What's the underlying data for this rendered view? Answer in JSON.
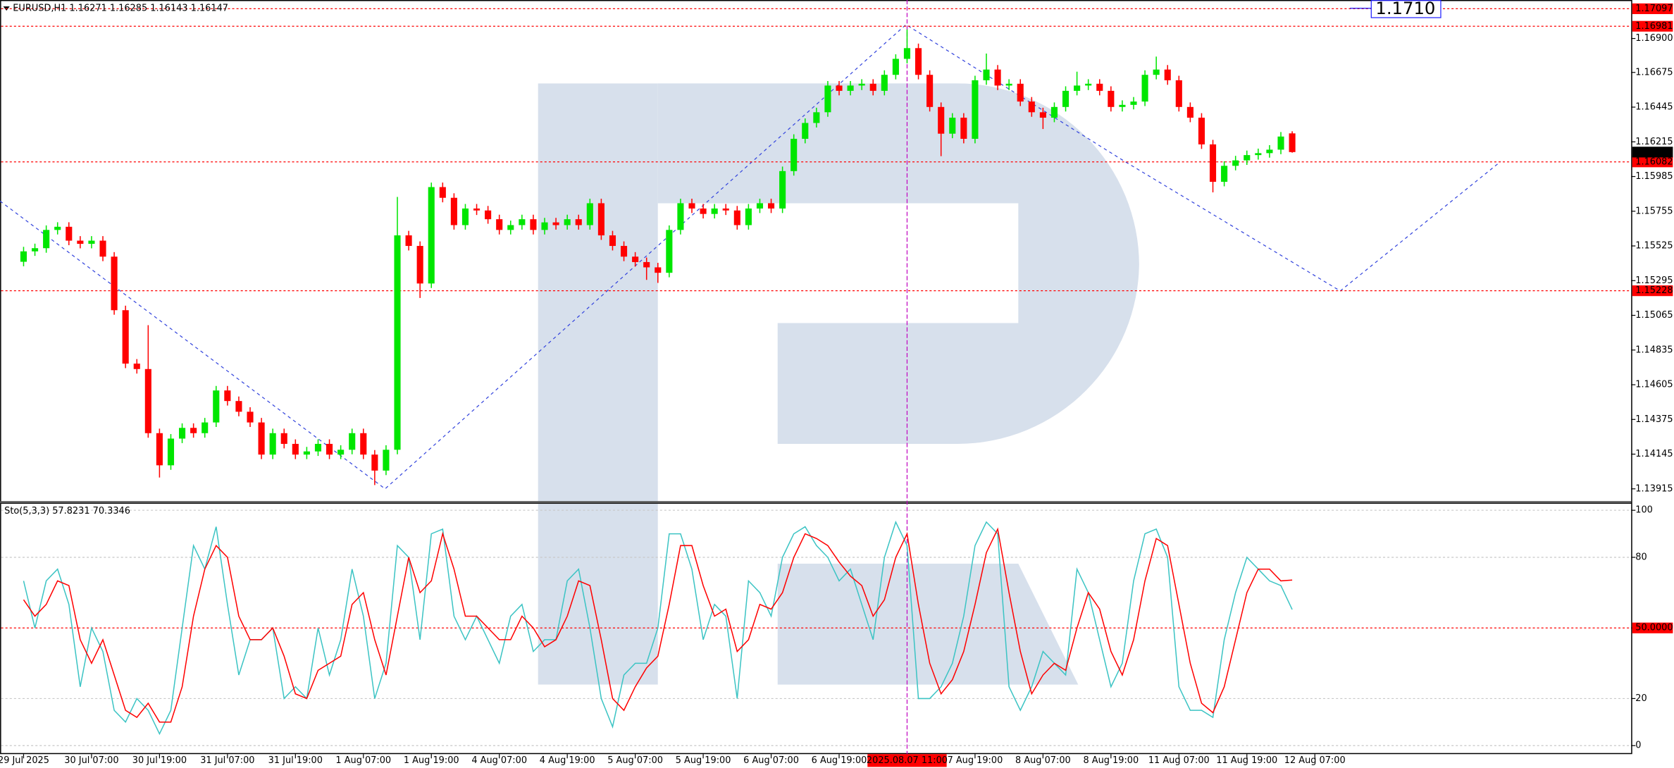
{
  "chart_data": [
    {
      "type": "candlestick",
      "title": "EURUSD,H1 1.16271 1.16285 1.16143 1.16147",
      "up_color": "#00e600",
      "down_color": "#ff0000",
      "ylim": [
        1.1383,
        1.17155
      ],
      "yticks": [
        {
          "value": 1.169,
          "label": "1.16900"
        },
        1.16675,
        1.16445,
        1.16215,
        1.15985,
        1.15755,
        1.15525,
        1.15295,
        1.15065,
        1.14835,
        1.14605,
        1.14375,
        1.14145,
        1.13915
      ],
      "grid": false,
      "levels": [
        1.17097,
        1.16981,
        1.16082,
        1.15228
      ],
      "level_color": "#ff0000",
      "last_price": 1.16147,
      "last_price_color": "#000000",
      "annotations": [
        {
          "value": 1.171,
          "label": "1.1710",
          "color": "#1a1aff"
        }
      ],
      "crosshair_index": 78,
      "crosshair_color": "#c000c0",
      "categories": [
        "29 Jul 2025",
        null,
        null,
        null,
        null,
        null,
        "30 Jul 07:00",
        null,
        null,
        null,
        null,
        null,
        "30 Jul 19:00",
        null,
        null,
        null,
        null,
        null,
        "31 Jul 07:00",
        null,
        null,
        null,
        null,
        null,
        "31 Jul 19:00",
        null,
        null,
        null,
        null,
        null,
        "1 Aug 07:00",
        null,
        null,
        null,
        null,
        null,
        "1 Aug 19:00",
        null,
        null,
        null,
        null,
        null,
        "4 Aug 07:00",
        null,
        null,
        null,
        null,
        null,
        "4 Aug 19:00",
        null,
        null,
        null,
        null,
        null,
        "5 Aug 07:00",
        null,
        null,
        null,
        null,
        null,
        "5 Aug 19:00",
        null,
        null,
        null,
        null,
        null,
        "6 Aug 07:00",
        null,
        null,
        null,
        null,
        null,
        "6 Aug 19:00",
        null,
        null,
        null,
        null,
        null,
        "2025.08.07 11:00",
        null,
        null,
        null,
        null,
        null,
        "7 Aug 19:00",
        null,
        null,
        null,
        null,
        null,
        "8 Aug 07:00",
        null,
        null,
        null,
        null,
        null,
        "8 Aug 19:00",
        null,
        null,
        null,
        null,
        null,
        "11 Aug 07:00",
        null,
        null,
        null,
        null,
        null,
        "11 Aug 19:00",
        null,
        null,
        null,
        null,
        null,
        "12 Aug 07:00"
      ],
      "open": [
        1.1542,
        1.15489,
        1.1551,
        1.15631,
        1.15652,
        1.1556,
        1.15539,
        1.1556,
        1.15454,
        1.15099,
        1.14745,
        1.14709,
        1.14284,
        1.14071,
        1.14248,
        1.14319,
        1.14284,
        1.14355,
        1.14567,
        1.14497,
        1.14426,
        1.14355,
        1.14142,
        1.14284,
        1.14213,
        1.14142,
        1.14163,
        1.14213,
        1.14142,
        1.14174,
        1.14284,
        1.14142,
        1.14036,
        1.14174,
        1.15595,
        1.15525,
        1.15276,
        1.15915,
        1.15844,
        1.15663,
        1.15773,
        1.1576,
        1.15702,
        1.15631,
        1.15663,
        1.15702,
        1.15631,
        1.15681,
        1.15663,
        1.15702,
        1.15663,
        1.15808,
        1.15595,
        1.15525,
        1.15454,
        1.15418,
        1.15383,
        1.15347,
        1.15631,
        1.15808,
        1.15773,
        1.15737,
        1.15773,
        1.1576,
        1.15663,
        1.15773,
        1.15808,
        1.15773,
        1.16021,
        1.16235,
        1.1634,
        1.16411,
        1.16588,
        1.16553,
        1.16588,
        1.166,
        1.16553,
        1.16659,
        1.16765,
        1.16836,
        1.16659,
        1.16446,
        1.16269,
        1.16375,
        1.16235,
        1.16623,
        1.16694,
        1.16588,
        1.166,
        1.16482,
        1.16411,
        1.16375,
        1.16446,
        1.16553,
        1.16588,
        1.166,
        1.16553,
        1.16446,
        1.1646,
        1.16482,
        1.16659,
        1.16694,
        1.16623,
        1.16446,
        1.16375,
        1.16198,
        1.1595,
        1.16056,
        1.16092,
        1.16127,
        1.1614,
        1.16163,
        1.16271,
        null,
        null
      ],
      "high": [
        1.15519,
        1.1554,
        1.15661,
        1.15682,
        1.15682,
        1.1559,
        1.1559,
        1.1559,
        1.15484,
        1.15129,
        1.14775,
        1.15,
        1.14314,
        1.14278,
        1.14349,
        1.14349,
        1.14385,
        1.14597,
        1.14597,
        1.14527,
        1.14456,
        1.14385,
        1.14314,
        1.14314,
        1.14243,
        1.14193,
        1.14243,
        1.14243,
        1.14204,
        1.14314,
        1.14314,
        1.14172,
        1.14204,
        1.1585,
        1.15625,
        1.15555,
        1.15945,
        1.15945,
        1.15874,
        1.15803,
        1.15803,
        1.1579,
        1.15732,
        1.15693,
        1.15732,
        1.15732,
        1.15711,
        1.15711,
        1.15732,
        1.15732,
        1.15838,
        1.15838,
        1.15625,
        1.15555,
        1.15484,
        1.15448,
        1.15413,
        1.15661,
        1.15838,
        1.15838,
        1.15803,
        1.15803,
        1.15803,
        1.1579,
        1.15803,
        1.15838,
        1.15838,
        1.16051,
        1.16265,
        1.1637,
        1.16441,
        1.16618,
        1.16618,
        1.16618,
        1.1663,
        1.1663,
        1.16689,
        1.16795,
        1.1696,
        1.16866,
        1.16689,
        1.16476,
        1.16405,
        1.16405,
        1.16653,
        1.168,
        1.16724,
        1.1663,
        1.1663,
        1.16512,
        1.16441,
        1.16476,
        1.16583,
        1.1668,
        1.1663,
        1.1663,
        1.16583,
        1.1649,
        1.16512,
        1.16689,
        1.1678,
        1.16724,
        1.16653,
        1.16476,
        1.16405,
        1.16228,
        1.16086,
        1.16122,
        1.16157,
        1.1617,
        1.16193,
        1.1628,
        1.16285,
        null,
        null
      ],
      "low": [
        1.1539,
        1.15459,
        1.1548,
        1.15601,
        1.1553,
        1.15509,
        1.15509,
        1.15424,
        1.15069,
        1.14715,
        1.14679,
        1.14254,
        1.1399,
        1.14041,
        1.14218,
        1.14254,
        1.14254,
        1.14325,
        1.14467,
        1.14396,
        1.14325,
        1.14112,
        1.14112,
        1.14183,
        1.14112,
        1.14112,
        1.14133,
        1.14112,
        1.14112,
        1.14144,
        1.14112,
        1.1394,
        1.14006,
        1.14144,
        1.15495,
        1.1518,
        1.15246,
        1.15814,
        1.15633,
        1.15633,
        1.1573,
        1.15672,
        1.15601,
        1.15601,
        1.15633,
        1.15601,
        1.15601,
        1.15633,
        1.15633,
        1.15633,
        1.15633,
        1.15565,
        1.15495,
        1.15424,
        1.15388,
        1.153,
        1.1528,
        1.15317,
        1.15601,
        1.15743,
        1.15707,
        1.15707,
        1.1573,
        1.15633,
        1.15633,
        1.15743,
        1.15743,
        1.15743,
        1.15991,
        1.16205,
        1.1631,
        1.16381,
        1.16523,
        1.16523,
        1.16558,
        1.16523,
        1.16523,
        1.16629,
        1.16735,
        1.16629,
        1.16416,
        1.1612,
        1.16239,
        1.16205,
        1.16205,
        1.16593,
        1.16558,
        1.16558,
        1.16452,
        1.16381,
        1.163,
        1.16345,
        1.16416,
        1.16523,
        1.16558,
        1.16523,
        1.16416,
        1.16416,
        1.1643,
        1.16452,
        1.16629,
        1.16593,
        1.16416,
        1.16345,
        1.16168,
        1.1588,
        1.1592,
        1.16026,
        1.16062,
        1.16097,
        1.1611,
        1.16133,
        1.16143,
        null,
        null
      ],
      "close": [
        1.15489,
        1.1551,
        1.15631,
        1.15652,
        1.1556,
        1.15539,
        1.1556,
        1.15454,
        1.15099,
        1.14745,
        1.14709,
        1.14284,
        1.14071,
        1.14248,
        1.14319,
        1.14284,
        1.14355,
        1.14567,
        1.14497,
        1.14426,
        1.14355,
        1.14142,
        1.14284,
        1.14213,
        1.14142,
        1.14163,
        1.14213,
        1.14142,
        1.14174,
        1.14284,
        1.14142,
        1.14036,
        1.14174,
        1.15595,
        1.15525,
        1.15276,
        1.15915,
        1.15844,
        1.15663,
        1.15773,
        1.1576,
        1.15702,
        1.15631,
        1.15663,
        1.15702,
        1.15631,
        1.15681,
        1.15663,
        1.15702,
        1.15663,
        1.15808,
        1.15595,
        1.15525,
        1.15454,
        1.15418,
        1.15383,
        1.15347,
        1.15631,
        1.15808,
        1.15773,
        1.15737,
        1.15773,
        1.1576,
        1.15663,
        1.15773,
        1.15808,
        1.15773,
        1.16021,
        1.16235,
        1.1634,
        1.16411,
        1.16588,
        1.16553,
        1.16588,
        1.166,
        1.16553,
        1.16659,
        1.16765,
        1.16836,
        1.16659,
        1.16446,
        1.16269,
        1.16375,
        1.16235,
        1.16623,
        1.16694,
        1.16588,
        1.166,
        1.16482,
        1.16411,
        1.16375,
        1.16446,
        1.16553,
        1.16588,
        1.166,
        1.16553,
        1.16446,
        1.1646,
        1.16482,
        1.16659,
        1.16694,
        1.16623,
        1.16446,
        1.16375,
        1.16198,
        1.1595,
        1.16056,
        1.16092,
        1.16127,
        1.1614,
        1.16163,
        1.1625,
        1.16147,
        null,
        null
      ]
    },
    {
      "type": "line",
      "title": "Sto(5,3,3) 57.8231 70.3346",
      "ylim": [
        -3.6,
        103.2
      ],
      "yticks": [
        100,
        80,
        {
          "value": 50,
          "label": "50.0000"
        },
        20,
        0
      ],
      "grid": true,
      "levels": [
        50
      ],
      "level_color": "#ff0000",
      "series": [
        {
          "name": "Main",
          "color": "#3cc4c4",
          "values": [
            70,
            50,
            70,
            75,
            60,
            25,
            50,
            40,
            15,
            10,
            20,
            15,
            5,
            15,
            50,
            85,
            75,
            93,
            60,
            30,
            45,
            45,
            50,
            20,
            25,
            20,
            50,
            30,
            45,
            75,
            55,
            20,
            35,
            85,
            80,
            45,
            90,
            92,
            55,
            45,
            55,
            45,
            35,
            55,
            60,
            40,
            45,
            45,
            70,
            75,
            50,
            20,
            8,
            30,
            35,
            35,
            50,
            90,
            90,
            75,
            45,
            60,
            55,
            20,
            70,
            65,
            55,
            80,
            90,
            93,
            85,
            80,
            70,
            75,
            60,
            45,
            80,
            95,
            85,
            20,
            20,
            25,
            35,
            55,
            85,
            95,
            90,
            25,
            15,
            25,
            40,
            35,
            30,
            75,
            65,
            45,
            25,
            35,
            70,
            90,
            92,
            80,
            25,
            15,
            15,
            12,
            45,
            65,
            80,
            75,
            70,
            68,
            57.8231,
            null,
            null
          ]
        },
        {
          "name": "Signal",
          "color": "#ff0000",
          "values": [
            62,
            55,
            60,
            70,
            68,
            45,
            35,
            45,
            30,
            15,
            12,
            18,
            10,
            10,
            25,
            55,
            75,
            85,
            80,
            55,
            45,
            45,
            50,
            38,
            22,
            20,
            32,
            35,
            38,
            60,
            65,
            45,
            30,
            55,
            80,
            65,
            70,
            90,
            75,
            55,
            55,
            50,
            45,
            45,
            55,
            50,
            42,
            45,
            55,
            70,
            68,
            45,
            20,
            15,
            25,
            33,
            38,
            60,
            85,
            85,
            68,
            55,
            58,
            40,
            45,
            60,
            58,
            65,
            80,
            90,
            88,
            85,
            78,
            72,
            68,
            55,
            62,
            80,
            90,
            60,
            35,
            22,
            28,
            40,
            60,
            82,
            92,
            65,
            40,
            22,
            30,
            35,
            32,
            50,
            65,
            58,
            40,
            30,
            45,
            70,
            88,
            85,
            60,
            35,
            18,
            14,
            25,
            45,
            65,
            75,
            75,
            70,
            70.3346,
            null,
            null
          ]
        }
      ]
    }
  ]
}
